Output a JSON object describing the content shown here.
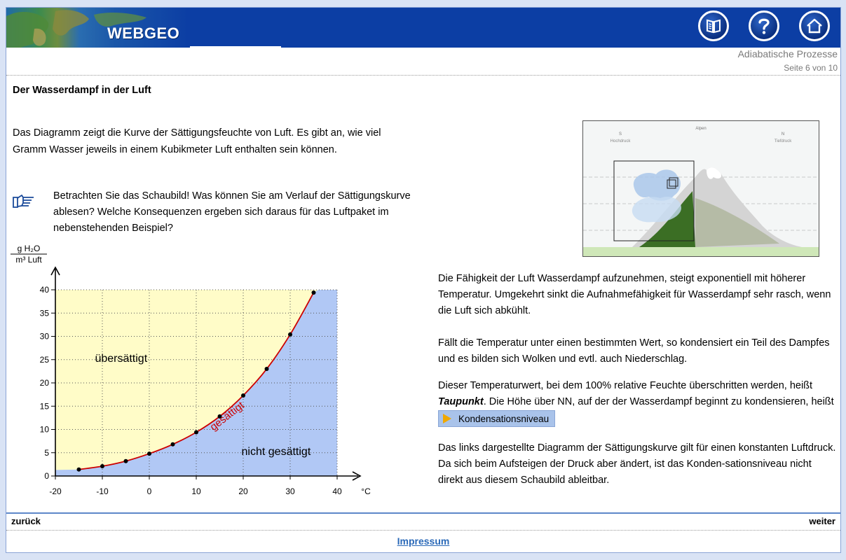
{
  "header": {
    "logo_text": "WEBGEO",
    "buttons": [
      "book-icon",
      "help-icon",
      "home-icon"
    ],
    "lesson_title": "Adiabatische Prozesse",
    "page_indicator": "Seite 6 von 10"
  },
  "main": {
    "title": "Der Wasserdampf in der Luft",
    "intro": "Das Diagramm  zeigt die Kurve der Sättigungsfeuchte von Luft. Es gibt an, wie viel Gramm Wasser jeweils in einem Kubikmeter Luft enthalten sein können.",
    "task_icon": "pointing-hand-icon",
    "task": "Betrachten Sie das Schaubild!  Was können Sie am Verlauf der Sättigungskurve ablesen?  Welche Konsequenzen ergeben sich daraus für das Luftpaket im nebenstehenden Beispiel?"
  },
  "illustration": {
    "top_label": "Alpen",
    "left_dir": "S",
    "left_sub": "Hochdruck",
    "right_dir": "N",
    "right_sub": "Tiefdruck"
  },
  "right": {
    "p1": "Die Fähigkeit der Luft Wasserdampf aufzunehmen, steigt exponentiell mit höherer Temperatur. Umgekehrt sinkt die Aufnahmefähigkeit für Wasserdampf sehr rasch, wenn die Luft sich abkühlt.",
    "p2": "Fällt die Temperatur unter einen bestimmten Wert, so kondensiert ein Teil des Dampfes und es bilden sich Wolken und evtl. auch Niederschlag.",
    "p3_a": "Dieser Temperaturwert, bei dem 100% relative Feuchte überschritten werden, heißt ",
    "p3_term": "Taupunkt",
    "p3_b": ". Die Höhe über NN, auf der der Wasserdampf beginnt zu kondensieren, heißt",
    "button_label": "Kondensationsniveau",
    "p4": "Das links dargestellte Diagramm der Sättigungskurve gilt für einen konstanten Luftdruck. Da sich beim Aufsteigen der Druck aber ändert, ist das Konden-sationsniveau nicht direkt aus diesem Schaubild ableitbar."
  },
  "footer": {
    "back": "zurück",
    "next": "weiter",
    "impressum": "Impressum"
  },
  "colors": {
    "header_bg": "#0c3ea4",
    "supersaturated": "#fffcc8",
    "unsaturated": "#b1c8f5",
    "curve": "#cc0000"
  },
  "chart_data": {
    "type": "line",
    "title": "",
    "ylabel_num": "g H₂O",
    "ylabel_den": "m³ Luft",
    "xlabel": "°C",
    "xlim": [
      -20,
      40
    ],
    "ylim": [
      0,
      40
    ],
    "xticks": [
      -20,
      -10,
      0,
      10,
      20,
      30,
      40
    ],
    "yticks": [
      0,
      5,
      10,
      15,
      20,
      25,
      30,
      35,
      40
    ],
    "grid": true,
    "regions": [
      "übersättigt",
      "nicht gesättigt"
    ],
    "curve_label": "gesättigt",
    "series": [
      {
        "name": "gesättigt",
        "x": [
          -15,
          -10,
          -5,
          0,
          5,
          10,
          15,
          20,
          25,
          30,
          35
        ],
        "y": [
          1.4,
          2.1,
          3.2,
          4.8,
          6.8,
          9.4,
          12.8,
          17.3,
          23.0,
          30.4,
          39.4
        ]
      }
    ]
  }
}
